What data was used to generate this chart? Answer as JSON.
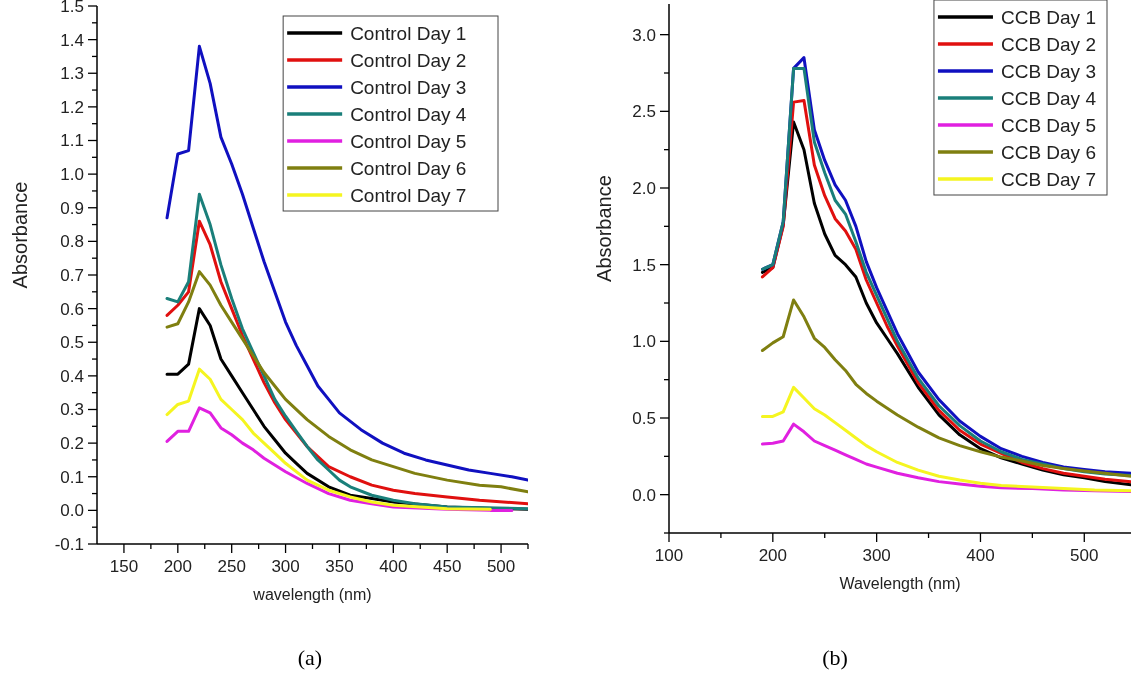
{
  "chart_data": [
    {
      "type": "line",
      "xlabel": "wavelength (nm)",
      "ylabel": "Absorbance",
      "annotations": [
        "(a)"
      ],
      "legend": "top right",
      "xlim": [
        125,
        525
      ],
      "ylim": [
        -0.1,
        1.5
      ],
      "xticks": [
        150,
        {
          "value": 175,
          "label": null
        },
        200,
        {
          "value": 225,
          "label": null
        },
        250,
        {
          "value": 275,
          "label": null
        },
        300,
        {
          "value": 325,
          "label": null
        },
        350,
        {
          "value": 375,
          "label": null
        },
        400,
        {
          "value": 425,
          "label": null
        },
        450,
        {
          "value": 475,
          "label": null
        },
        500,
        {
          "value": 525,
          "label": null
        }
      ],
      "yticks": [
        {
          "value": -0.1,
          "label": "-0.1"
        },
        {
          "value": -0.05,
          "label": null
        },
        {
          "value": 0,
          "label": "0.0"
        },
        {
          "value": 0.05,
          "label": null
        },
        {
          "value": 0.1,
          "label": "0.1"
        },
        {
          "value": 0.15,
          "label": null
        },
        {
          "value": 0.2,
          "label": "0.2"
        },
        {
          "value": 0.25,
          "label": null
        },
        {
          "value": 0.3,
          "label": "0.3"
        },
        {
          "value": 0.35,
          "label": null
        },
        {
          "value": 0.4,
          "label": "0.4"
        },
        {
          "value": 0.45,
          "label": null
        },
        {
          "value": 0.5,
          "label": "0.5"
        },
        {
          "value": 0.55,
          "label": null
        },
        {
          "value": 0.6,
          "label": "0.6"
        },
        {
          "value": 0.65,
          "label": null
        },
        {
          "value": 0.7,
          "label": "0.7"
        },
        {
          "value": 0.75,
          "label": null
        },
        {
          "value": 0.8,
          "label": "0.8"
        },
        {
          "value": 0.85,
          "label": null
        },
        {
          "value": 0.9,
          "label": "0.9"
        },
        {
          "value": 0.95,
          "label": null
        },
        {
          "value": 1,
          "label": "1.0"
        },
        {
          "value": 1.05,
          "label": null
        },
        {
          "value": 1.1,
          "label": "1.1"
        },
        {
          "value": 1.15,
          "label": null
        },
        {
          "value": 1.2,
          "label": "1.2"
        },
        {
          "value": 1.25,
          "label": null
        },
        {
          "value": 1.3,
          "label": "1.3"
        },
        {
          "value": 1.35,
          "label": null
        },
        {
          "value": 1.4,
          "label": "1.4"
        },
        {
          "value": 1.45,
          "label": null
        },
        {
          "value": 1.5,
          "label": "1.5"
        }
      ],
      "series": [
        {
          "name": "Control Day 1",
          "color": "#000000",
          "x": [
            190,
            200,
            210,
            220,
            230,
            240,
            250,
            260,
            270,
            280,
            290,
            300,
            310,
            320,
            340,
            360,
            380,
            400,
            450,
            500,
            525
          ],
          "values": [
            0.405,
            0.405,
            0.435,
            0.6,
            0.55,
            0.45,
            0.4,
            0.35,
            0.3,
            0.25,
            0.21,
            0.17,
            0.14,
            0.11,
            0.07,
            0.045,
            0.035,
            0.025,
            0.01,
            0.005,
            0.003
          ]
        },
        {
          "name": "Control Day 2",
          "color": "#e0100f",
          "x": [
            190,
            200,
            210,
            220,
            230,
            240,
            250,
            260,
            270,
            280,
            290,
            300,
            310,
            320,
            330,
            340,
            360,
            380,
            400,
            420,
            450,
            480,
            525
          ],
          "values": [
            0.58,
            0.61,
            0.65,
            0.86,
            0.79,
            0.68,
            0.6,
            0.52,
            0.45,
            0.38,
            0.32,
            0.27,
            0.23,
            0.19,
            0.16,
            0.13,
            0.1,
            0.075,
            0.06,
            0.05,
            0.04,
            0.03,
            0.02
          ]
        },
        {
          "name": "Control Day 3",
          "color": "#1010c0",
          "x": [
            190,
            200,
            210,
            220,
            230,
            240,
            250,
            260,
            270,
            280,
            290,
            300,
            310,
            320,
            330,
            340,
            350,
            370,
            390,
            410,
            430,
            450,
            470,
            490,
            510,
            525
          ],
          "values": [
            0.87,
            1.06,
            1.07,
            1.38,
            1.27,
            1.11,
            1.03,
            0.94,
            0.84,
            0.74,
            0.65,
            0.56,
            0.49,
            0.43,
            0.37,
            0.33,
            0.29,
            0.24,
            0.2,
            0.17,
            0.15,
            0.135,
            0.12,
            0.11,
            0.1,
            0.09
          ]
        },
        {
          "name": "Control Day 4",
          "color": "#1a7f7a",
          "x": [
            190,
            200,
            210,
            220,
            230,
            240,
            250,
            260,
            270,
            280,
            290,
            300,
            310,
            320,
            330,
            340,
            350,
            360,
            380,
            400,
            420,
            450,
            525
          ],
          "values": [
            0.63,
            0.62,
            0.68,
            0.94,
            0.85,
            0.73,
            0.63,
            0.54,
            0.47,
            0.4,
            0.33,
            0.28,
            0.235,
            0.19,
            0.15,
            0.12,
            0.09,
            0.07,
            0.045,
            0.03,
            0.02,
            0.01,
            0.005
          ]
        },
        {
          "name": "Control Day 5",
          "color": "#e020e0",
          "x": [
            190,
            200,
            210,
            220,
            230,
            240,
            250,
            260,
            270,
            280,
            290,
            300,
            320,
            340,
            360,
            380,
            400,
            450,
            490,
            510
          ],
          "values": [
            0.205,
            0.235,
            0.235,
            0.305,
            0.29,
            0.245,
            0.225,
            0.2,
            0.18,
            0.155,
            0.135,
            0.115,
            0.08,
            0.05,
            0.03,
            0.02,
            0.01,
            0.003,
            0,
            0
          ]
        },
        {
          "name": "Control Day 6",
          "color": "#7f7f10",
          "x": [
            190,
            200,
            210,
            220,
            230,
            240,
            250,
            260,
            270,
            280,
            290,
            300,
            320,
            340,
            360,
            380,
            400,
            420,
            450,
            480,
            500,
            525
          ],
          "values": [
            0.545,
            0.555,
            0.62,
            0.71,
            0.67,
            0.61,
            0.56,
            0.51,
            0.46,
            0.41,
            0.37,
            0.33,
            0.27,
            0.22,
            0.18,
            0.15,
            0.13,
            0.11,
            0.09,
            0.075,
            0.07,
            0.055
          ]
        },
        {
          "name": "Control Day 7",
          "color": "#f5f520",
          "x": [
            190,
            200,
            210,
            220,
            230,
            240,
            250,
            260,
            270,
            280,
            290,
            300,
            320,
            340,
            360,
            380,
            400,
            450,
            490
          ],
          "values": [
            0.285,
            0.315,
            0.325,
            0.42,
            0.39,
            0.33,
            0.3,
            0.27,
            0.23,
            0.2,
            0.17,
            0.14,
            0.09,
            0.06,
            0.04,
            0.025,
            0.015,
            0.005,
            0.003
          ]
        }
      ]
    },
    {
      "type": "line",
      "xlabel": "Wavelength (nm)",
      "ylabel": "Absorbance",
      "annotations": [
        "(b)"
      ],
      "legend": "top right",
      "xlim": [
        100,
        545
      ],
      "ylim": [
        -0.25,
        3.2
      ],
      "xticks": [
        100,
        {
          "value": 150,
          "label": null
        },
        200,
        {
          "value": 250,
          "label": null
        },
        300,
        {
          "value": 350,
          "label": null
        },
        400,
        {
          "value": 450,
          "label": null
        },
        500
      ],
      "yticks": [
        {
          "value": -0.25,
          "label": null
        },
        {
          "value": 0,
          "label": "0.0"
        },
        {
          "value": 0.25,
          "label": null
        },
        {
          "value": 0.5,
          "label": "0.5"
        },
        {
          "value": 0.75,
          "label": null
        },
        {
          "value": 1,
          "label": "1.0"
        },
        {
          "value": 1.25,
          "label": null
        },
        {
          "value": 1.5,
          "label": "1.5"
        },
        {
          "value": 1.75,
          "label": null
        },
        {
          "value": 2,
          "label": "2.0"
        },
        {
          "value": 2.25,
          "label": null
        },
        {
          "value": 2.5,
          "label": "2.5"
        },
        {
          "value": 2.75,
          "label": null
        },
        {
          "value": 3,
          "label": "3.0"
        }
      ],
      "series": [
        {
          "name": "CCB Day 1",
          "color": "#000000",
          "x": [
            190,
            200,
            210,
            220,
            230,
            240,
            250,
            260,
            270,
            280,
            290,
            300,
            310,
            320,
            340,
            360,
            380,
            400,
            420,
            440,
            460,
            480,
            500,
            520,
            545
          ],
          "values": [
            1.45,
            1.48,
            1.76,
            2.43,
            2.25,
            1.9,
            1.7,
            1.56,
            1.5,
            1.42,
            1.25,
            1.12,
            1.02,
            0.92,
            0.7,
            0.52,
            0.39,
            0.3,
            0.24,
            0.2,
            0.16,
            0.13,
            0.11,
            0.085,
            0.065
          ]
        },
        {
          "name": "CCB Day 2",
          "color": "#e0100f",
          "x": [
            190,
            200,
            210,
            220,
            230,
            240,
            250,
            260,
            270,
            280,
            290,
            300,
            310,
            320,
            340,
            360,
            380,
            400,
            420,
            440,
            460,
            480,
            500,
            520,
            545
          ],
          "values": [
            1.42,
            1.48,
            1.75,
            2.56,
            2.57,
            2.15,
            1.95,
            1.8,
            1.72,
            1.6,
            1.4,
            1.25,
            1.1,
            0.97,
            0.73,
            0.55,
            0.42,
            0.33,
            0.27,
            0.21,
            0.17,
            0.14,
            0.12,
            0.1,
            0.085
          ]
        },
        {
          "name": "CCB Day 3",
          "color": "#1010c0",
          "x": [
            190,
            200,
            210,
            220,
            230,
            240,
            250,
            260,
            270,
            280,
            290,
            300,
            310,
            320,
            340,
            360,
            380,
            400,
            420,
            440,
            460,
            480,
            500,
            520,
            545
          ],
          "values": [
            1.47,
            1.5,
            1.78,
            2.78,
            2.85,
            2.38,
            2.18,
            2.02,
            1.92,
            1.75,
            1.52,
            1.35,
            1.2,
            1.05,
            0.8,
            0.62,
            0.48,
            0.38,
            0.3,
            0.25,
            0.21,
            0.18,
            0.165,
            0.15,
            0.14
          ]
        },
        {
          "name": "CCB Day 4",
          "color": "#1a7f7a",
          "x": [
            190,
            200,
            210,
            220,
            230,
            240,
            250,
            260,
            270,
            280,
            290,
            300,
            310,
            320,
            340,
            360,
            380,
            400,
            420,
            440,
            460,
            480,
            500,
            520,
            545
          ],
          "values": [
            1.47,
            1.5,
            1.78,
            2.78,
            2.78,
            2.3,
            2.1,
            1.92,
            1.83,
            1.65,
            1.45,
            1.3,
            1.15,
            1,
            0.76,
            0.58,
            0.45,
            0.35,
            0.28,
            0.23,
            0.2,
            0.17,
            0.15,
            0.135,
            0.125
          ]
        },
        {
          "name": "CCB Day 5",
          "color": "#e020e0",
          "x": [
            190,
            200,
            210,
            220,
            230,
            240,
            250,
            260,
            270,
            280,
            290,
            300,
            320,
            340,
            360,
            380,
            400,
            420,
            450,
            480,
            510,
            545
          ],
          "values": [
            0.33,
            0.335,
            0.35,
            0.46,
            0.41,
            0.35,
            0.32,
            0.29,
            0.26,
            0.23,
            0.2,
            0.18,
            0.14,
            0.11,
            0.085,
            0.07,
            0.055,
            0.045,
            0.04,
            0.03,
            0.025,
            0.02
          ]
        },
        {
          "name": "CCB Day 6",
          "color": "#7f7f10",
          "x": [
            190,
            200,
            210,
            220,
            230,
            240,
            250,
            260,
            270,
            280,
            290,
            300,
            320,
            340,
            360,
            380,
            400,
            420,
            440,
            460,
            480,
            500,
            520,
            545
          ],
          "values": [
            0.94,
            0.99,
            1.03,
            1.27,
            1.16,
            1.02,
            0.96,
            0.88,
            0.81,
            0.72,
            0.66,
            0.61,
            0.52,
            0.44,
            0.37,
            0.32,
            0.28,
            0.245,
            0.22,
            0.19,
            0.17,
            0.155,
            0.14,
            0.12
          ]
        },
        {
          "name": "CCB Day 7",
          "color": "#f5f520",
          "x": [
            190,
            200,
            210,
            220,
            230,
            240,
            250,
            260,
            270,
            280,
            290,
            300,
            320,
            340,
            360,
            380,
            400,
            420,
            450,
            480,
            510,
            545
          ],
          "values": [
            0.51,
            0.51,
            0.54,
            0.7,
            0.63,
            0.56,
            0.52,
            0.47,
            0.42,
            0.37,
            0.32,
            0.28,
            0.21,
            0.16,
            0.12,
            0.095,
            0.075,
            0.06,
            0.05,
            0.04,
            0.03,
            0.025
          ]
        }
      ]
    }
  ]
}
